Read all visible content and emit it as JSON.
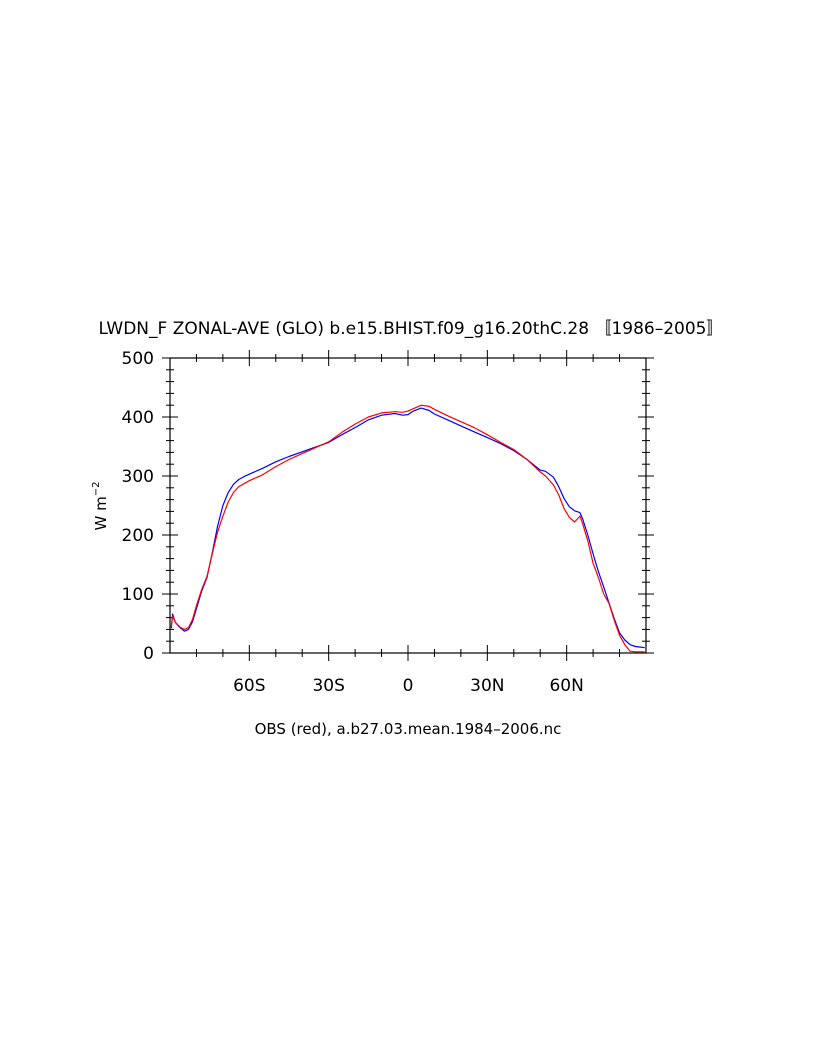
{
  "chart_data": {
    "type": "line",
    "title": "LWDN_F ZONAL-AVE (GLO) b.e15.BHIST.f09_g16.20thC.28 〚1986–2005〛",
    "xlabel": "OBS (red), a.b27.03.mean.1984–2006.nc",
    "ylabel_base": "W m",
    "ylabel_exp": "−2",
    "xlim": [
      -90,
      90
    ],
    "ylim": [
      0,
      500
    ],
    "x_ticks": [
      {
        "value": -60,
        "label": "60S"
      },
      {
        "value": -30,
        "label": "30S"
      },
      {
        "value": 0,
        "label": "0"
      },
      {
        "value": 30,
        "label": "30N"
      },
      {
        "value": 60,
        "label": "60N"
      }
    ],
    "y_ticks": [
      {
        "value": 0,
        "label": "0"
      },
      {
        "value": 100,
        "label": "100"
      },
      {
        "value": 200,
        "label": "200"
      },
      {
        "value": 300,
        "label": "300"
      },
      {
        "value": 400,
        "label": "400"
      },
      {
        "value": 500,
        "label": "500"
      }
    ],
    "grid": false,
    "series": [
      {
        "color": "#0000ff",
        "points": [
          [
            -89.5,
            42
          ],
          [
            -89,
            66
          ],
          [
            -88,
            52
          ],
          [
            -86,
            42
          ],
          [
            -84.5,
            37
          ],
          [
            -83,
            40
          ],
          [
            -81.5,
            53
          ],
          [
            -80,
            75
          ],
          [
            -78,
            105
          ],
          [
            -76,
            128
          ],
          [
            -74,
            170
          ],
          [
            -72,
            215
          ],
          [
            -70,
            250
          ],
          [
            -68,
            272
          ],
          [
            -66,
            286
          ],
          [
            -64,
            294
          ],
          [
            -62,
            299
          ],
          [
            -60,
            303
          ],
          [
            -55,
            313
          ],
          [
            -50,
            324
          ],
          [
            -45,
            333
          ],
          [
            -40,
            341
          ],
          [
            -35,
            349
          ],
          [
            -30,
            357
          ],
          [
            -25,
            370
          ],
          [
            -20,
            382
          ],
          [
            -15,
            395
          ],
          [
            -10,
            403
          ],
          [
            -5,
            406
          ],
          [
            -2,
            403
          ],
          [
            0,
            404
          ],
          [
            2,
            410
          ],
          [
            5,
            415
          ],
          [
            8,
            411
          ],
          [
            10,
            405
          ],
          [
            15,
            395
          ],
          [
            20,
            385
          ],
          [
            25,
            375
          ],
          [
            30,
            365
          ],
          [
            35,
            355
          ],
          [
            40,
            343
          ],
          [
            45,
            328
          ],
          [
            50,
            310
          ],
          [
            52,
            308
          ],
          [
            55,
            298
          ],
          [
            57,
            282
          ],
          [
            59,
            262
          ],
          [
            61,
            248
          ],
          [
            63,
            241
          ],
          [
            65,
            238
          ],
          [
            66,
            228
          ],
          [
            68,
            200
          ],
          [
            70,
            168
          ],
          [
            72,
            138
          ],
          [
            74,
            112
          ],
          [
            76,
            85
          ],
          [
            78,
            58
          ],
          [
            80,
            34
          ],
          [
            82,
            22
          ],
          [
            84,
            14
          ],
          [
            86,
            11
          ],
          [
            88,
            10
          ],
          [
            89.5,
            9
          ]
        ]
      },
      {
        "color": "#ff0000",
        "points": [
          [
            -89.5,
            45
          ],
          [
            -89,
            63
          ],
          [
            -88,
            52
          ],
          [
            -86,
            43
          ],
          [
            -84.5,
            40
          ],
          [
            -83,
            43
          ],
          [
            -81.5,
            57
          ],
          [
            -80,
            80
          ],
          [
            -78,
            108
          ],
          [
            -76,
            130
          ],
          [
            -74,
            168
          ],
          [
            -72,
            205
          ],
          [
            -70,
            232
          ],
          [
            -68,
            256
          ],
          [
            -66,
            272
          ],
          [
            -64,
            282
          ],
          [
            -62,
            287
          ],
          [
            -60,
            292
          ],
          [
            -55,
            302
          ],
          [
            -50,
            316
          ],
          [
            -45,
            328
          ],
          [
            -40,
            338
          ],
          [
            -35,
            348
          ],
          [
            -30,
            358
          ],
          [
            -25,
            374
          ],
          [
            -20,
            388
          ],
          [
            -15,
            400
          ],
          [
            -10,
            407
          ],
          [
            -5,
            409
          ],
          [
            -2,
            408
          ],
          [
            0,
            410
          ],
          [
            2,
            414
          ],
          [
            5,
            420
          ],
          [
            8,
            418
          ],
          [
            10,
            413
          ],
          [
            15,
            402
          ],
          [
            20,
            392
          ],
          [
            25,
            382
          ],
          [
            30,
            370
          ],
          [
            35,
            357
          ],
          [
            40,
            345
          ],
          [
            45,
            328
          ],
          [
            50,
            307
          ],
          [
            52,
            300
          ],
          [
            55,
            285
          ],
          [
            57,
            268
          ],
          [
            59,
            245
          ],
          [
            61,
            230
          ],
          [
            63,
            222
          ],
          [
            65,
            232
          ],
          [
            66,
            220
          ],
          [
            68,
            190
          ],
          [
            70,
            152
          ],
          [
            72,
            128
          ],
          [
            74,
            100
          ],
          [
            76,
            84
          ],
          [
            78,
            55
          ],
          [
            80,
            30
          ],
          [
            82,
            14
          ],
          [
            84,
            3
          ],
          [
            86,
            2
          ],
          [
            88,
            2
          ],
          [
            89.5,
            2
          ]
        ]
      }
    ]
  }
}
